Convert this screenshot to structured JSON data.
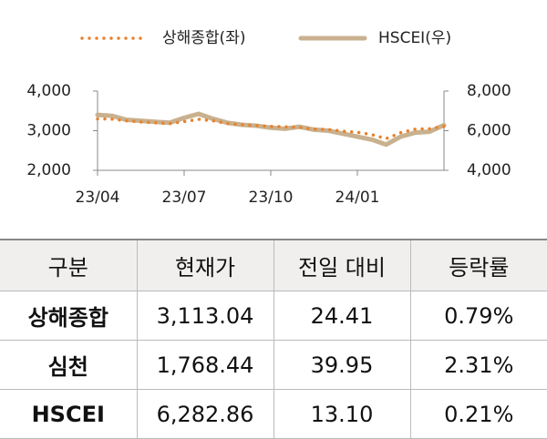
{
  "chart_data": {
    "type": "line",
    "x": [
      0,
      0.5,
      1,
      1.5,
      2,
      2.5,
      3,
      3.5,
      4,
      4.5,
      5,
      5.5,
      6,
      6.5,
      7,
      7.5,
      8,
      8.5,
      9,
      9.5,
      10,
      10.5,
      11,
      11.5,
      12
    ],
    "xlim": [
      0,
      12
    ],
    "xticks": [
      {
        "value": 0,
        "label": "23/04"
      },
      {
        "value": 3,
        "label": "23/07"
      },
      {
        "value": 6,
        "label": "23/10"
      },
      {
        "value": 9,
        "label": "24/01"
      }
    ],
    "ylim": [
      2000,
      4000
    ],
    "yticks": [
      {
        "value": 2000,
        "label": "2,000"
      },
      {
        "value": 3000,
        "label": "3,000"
      },
      {
        "value": 4000,
        "label": "4,000"
      }
    ],
    "y2lim": [
      4000,
      8000
    ],
    "y2ticks": [
      {
        "value": 4000,
        "label": "4,000"
      },
      {
        "value": 6000,
        "label": "6,000"
      },
      {
        "value": 8000,
        "label": "8,000"
      }
    ],
    "series": [
      {
        "name": "상해종합(좌)",
        "color": "#e8822e",
        "values": [
          3300,
          3290,
          3250,
          3220,
          3200,
          3180,
          3230,
          3290,
          3250,
          3180,
          3150,
          3130,
          3110,
          3100,
          3080,
          3040,
          3030,
          2990,
          2960,
          2900,
          2800,
          2950,
          3040,
          3050,
          3110
        ]
      },
      {
        "name": "HSCEI(우)",
        "color": "#c9b18f",
        "axis": "y2",
        "values": [
          6800,
          6750,
          6550,
          6500,
          6450,
          6400,
          6650,
          6850,
          6600,
          6400,
          6300,
          6250,
          6150,
          6100,
          6200,
          6050,
          6000,
          5850,
          5700,
          5550,
          5300,
          5700,
          5900,
          5950,
          6280
        ]
      }
    ]
  },
  "table": {
    "header": [
      "구분",
      "현재가",
      "전일 대비",
      "등락률"
    ],
    "rows": [
      [
        "상해종합",
        "3,113.04",
        "24.41",
        "0.79%"
      ],
      [
        "심천",
        "1,768.44",
        "39.95",
        "2.31%"
      ],
      [
        "HSCEI",
        "6,282.86",
        "13.10",
        "0.21%"
      ]
    ]
  }
}
